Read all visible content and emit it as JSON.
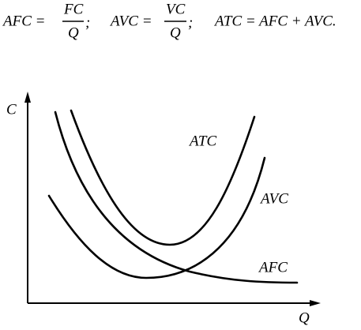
{
  "formulas": [
    {
      "lhs": "AFC =",
      "num": "FC",
      "den": "Q",
      "end": ";"
    },
    {
      "lhs": "AVC =",
      "num": "VC",
      "den": "Q",
      "end": ";"
    },
    {
      "text": "ATC = AFC + AVC."
    }
  ],
  "axes": {
    "y": "C",
    "x": "Q"
  },
  "curves": [
    {
      "label": "ATC"
    },
    {
      "label": "AVC"
    },
    {
      "label": "AFC"
    }
  ]
}
